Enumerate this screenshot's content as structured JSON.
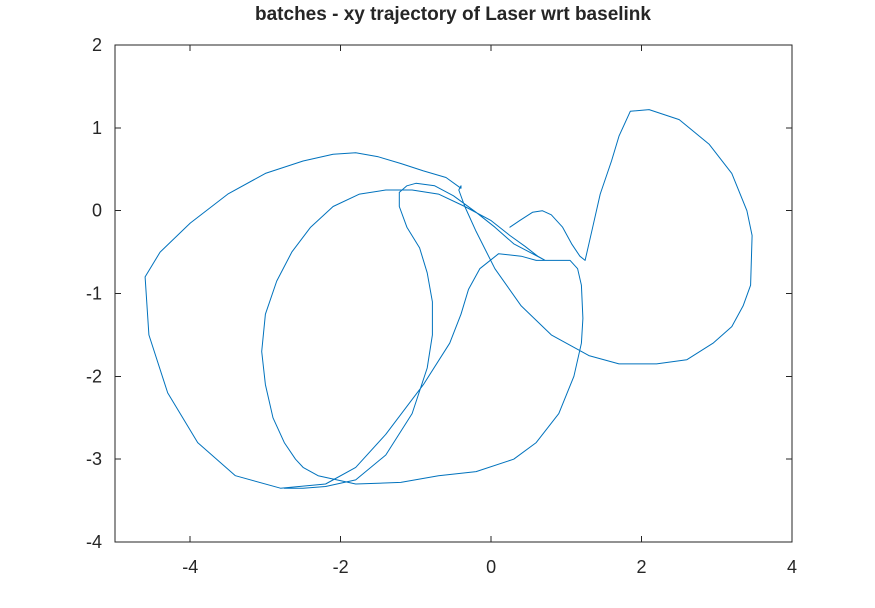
{
  "chart_data": {
    "type": "line",
    "title": "batches - xy trajectory of Laser wrt baselink",
    "xlabel": "",
    "ylabel": "",
    "xlim": [
      -5,
      4
    ],
    "ylim": [
      -4,
      2
    ],
    "x_ticks": [
      -4,
      -2,
      0,
      2,
      4
    ],
    "y_ticks": [
      2,
      1,
      0,
      -1,
      -2,
      -3,
      -4
    ],
    "x_tick_labels": [
      "-4",
      "-2",
      "0",
      "2",
      "4"
    ],
    "y_tick_labels": [
      "2",
      "1",
      "0",
      "-1",
      "-2",
      "-3",
      "-4"
    ],
    "grid": false,
    "legend": "none",
    "series": [
      {
        "color": "#0072bd",
        "x": [
          0.25,
          0.38,
          0.55,
          0.68,
          0.8,
          0.95,
          1.07,
          1.18,
          1.25,
          1.3,
          1.35,
          1.45,
          1.6,
          1.7,
          1.85,
          2.1,
          2.5,
          2.9,
          3.2,
          3.4,
          3.47,
          3.45,
          3.35,
          3.2,
          2.95,
          2.6,
          2.2,
          1.7,
          1.3,
          0.8,
          0.4,
          0.05,
          -0.2,
          -0.35,
          -0.43,
          -0.4,
          -0.4,
          -0.6,
          -0.9,
          -1.2,
          -1.5,
          -1.8,
          -2.1,
          -2.5,
          -3.0,
          -3.5,
          -4.0,
          -4.4,
          -4.6,
          -4.55,
          -4.3,
          -3.9,
          -3.4,
          -2.8,
          -2.2,
          -1.8,
          -1.4,
          -0.9,
          -0.55,
          -0.4,
          -0.3,
          -0.15,
          0.1,
          0.4,
          0.6,
          0.75,
          0.9,
          1.05,
          1.15,
          1.2,
          1.22,
          1.2,
          1.1,
          0.9,
          0.6,
          0.3,
          -0.2,
          -0.7,
          -1.2,
          -1.8,
          -2.3,
          -2.5,
          -2.6,
          -2.75,
          -2.9,
          -3.0,
          -3.05,
          -3.0,
          -2.85,
          -2.65,
          -2.4,
          -2.1,
          -1.75,
          -1.4,
          -1.05,
          -0.7,
          -0.35,
          0.0,
          0.25,
          0.45,
          0.62,
          0.72,
          0.55,
          0.3,
          0.05,
          -0.2,
          -0.5,
          -0.75,
          -1.0,
          -1.12,
          -1.22,
          -1.22,
          -1.12,
          -0.95,
          -0.85,
          -0.78,
          -0.78,
          -0.85,
          -1.05,
          -1.4,
          -1.8,
          -2.2,
          -2.5,
          -2.75
        ],
        "y": [
          -0.2,
          -0.12,
          -0.02,
          0.0,
          -0.05,
          -0.2,
          -0.4,
          -0.55,
          -0.6,
          -0.4,
          -0.2,
          0.2,
          0.6,
          0.9,
          1.2,
          1.22,
          1.1,
          0.8,
          0.45,
          0.0,
          -0.3,
          -0.9,
          -1.15,
          -1.4,
          -1.6,
          -1.8,
          -1.85,
          -1.85,
          -1.75,
          -1.5,
          -1.15,
          -0.7,
          -0.25,
          0.05,
          0.25,
          0.3,
          0.27,
          0.4,
          0.48,
          0.57,
          0.65,
          0.7,
          0.68,
          0.6,
          0.45,
          0.2,
          -0.15,
          -0.5,
          -0.8,
          -1.5,
          -2.2,
          -2.8,
          -3.2,
          -3.35,
          -3.3,
          -3.1,
          -2.7,
          -2.1,
          -1.6,
          -1.25,
          -0.95,
          -0.7,
          -0.52,
          -0.55,
          -0.6,
          -0.6,
          -0.6,
          -0.6,
          -0.7,
          -0.9,
          -1.3,
          -1.6,
          -2.0,
          -2.45,
          -2.8,
          -3.0,
          -3.15,
          -3.2,
          -3.28,
          -3.3,
          -3.2,
          -3.1,
          -3.0,
          -2.8,
          -2.5,
          -2.1,
          -1.7,
          -1.25,
          -0.85,
          -0.5,
          -0.2,
          0.05,
          0.2,
          0.25,
          0.25,
          0.2,
          0.05,
          -0.12,
          -0.3,
          -0.43,
          -0.55,
          -0.6,
          -0.52,
          -0.4,
          -0.2,
          -0.02,
          0.18,
          0.3,
          0.33,
          0.3,
          0.22,
          0.05,
          -0.2,
          -0.45,
          -0.75,
          -1.1,
          -1.5,
          -1.9,
          -2.45,
          -2.95,
          -3.25,
          -3.33,
          -3.35,
          -3.35
        ]
      }
    ]
  }
}
